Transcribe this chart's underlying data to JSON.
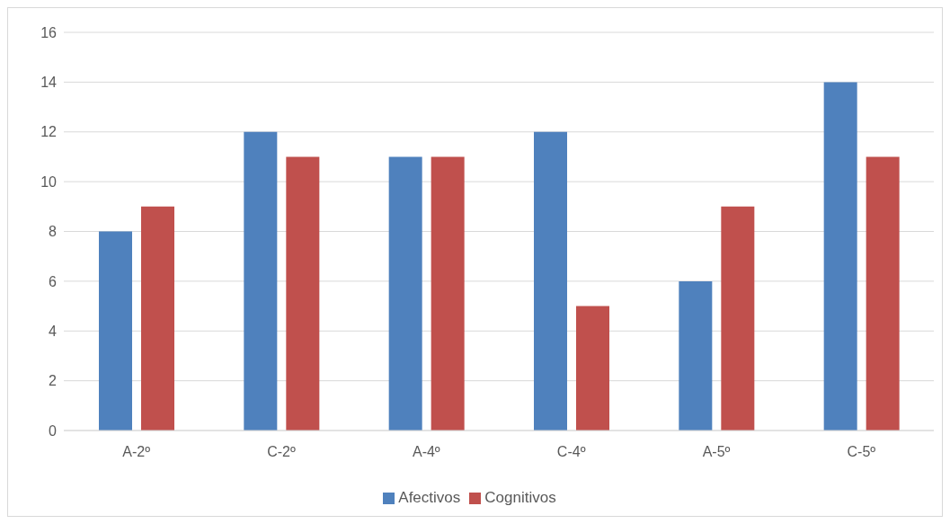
{
  "chart_data": {
    "type": "bar",
    "categories": [
      "A-2º",
      "C-2º",
      "A-4º",
      "C-4º",
      "A-5º",
      "C-5º"
    ],
    "series": [
      {
        "name": "Afectivos",
        "color": "#4f81bd",
        "values": [
          8,
          12,
          11,
          12,
          6,
          14
        ]
      },
      {
        "name": "Cognitivos",
        "color": "#c0504d",
        "values": [
          9,
          11,
          11,
          5,
          9,
          11
        ]
      }
    ],
    "ylim": [
      0,
      16
    ],
    "yticks": [
      0,
      2,
      4,
      6,
      8,
      10,
      12,
      14,
      16
    ],
    "grid": "y",
    "legend": "bottom"
  }
}
